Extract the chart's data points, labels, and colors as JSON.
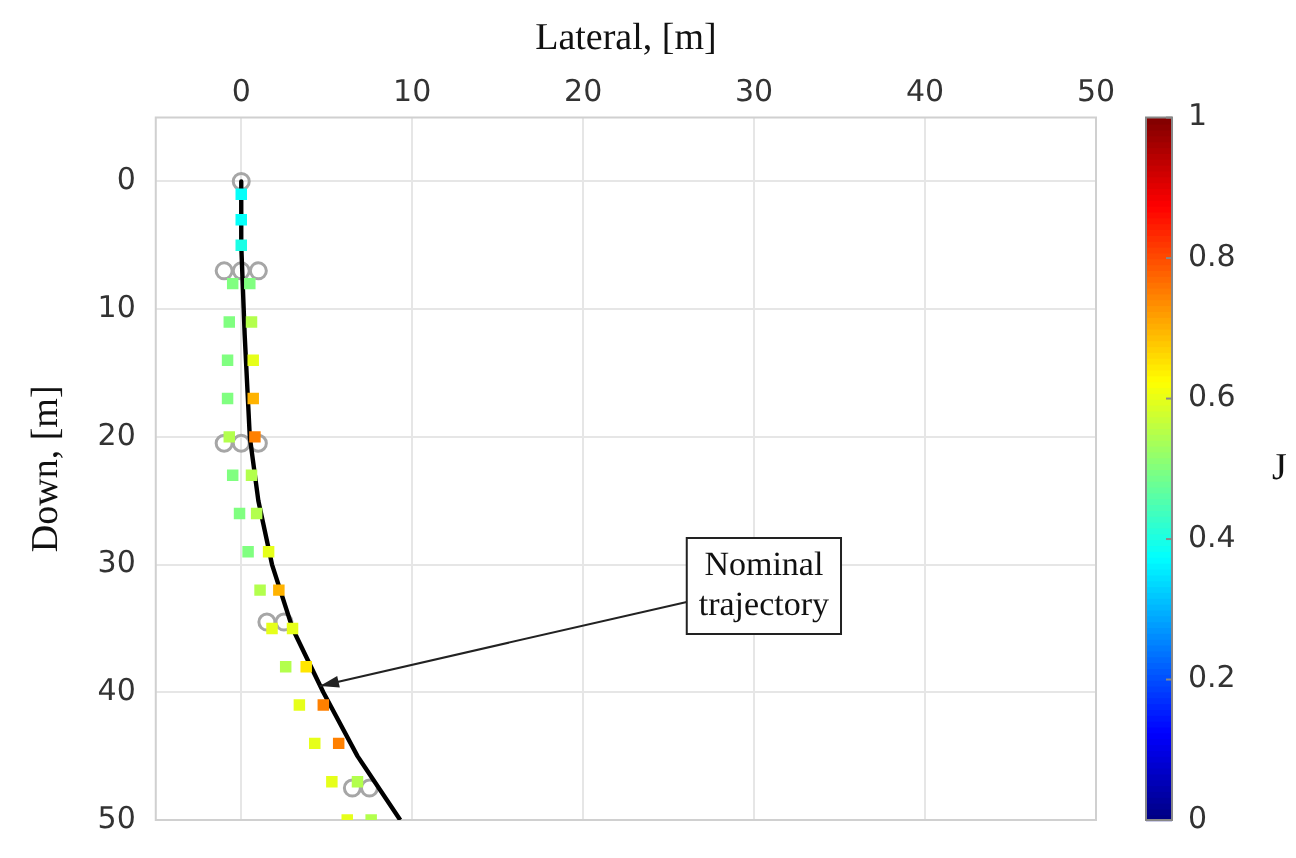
{
  "chart_data": {
    "type": "line",
    "xlabel": "Lateral, [m]",
    "ylabel": "Down, [m]",
    "clabel": "J",
    "xlim": [
      -5,
      50
    ],
    "xticks": [
      0,
      10,
      20,
      30,
      40,
      50
    ],
    "ylim": [
      50,
      -5
    ],
    "yticks": [
      0,
      10,
      20,
      30,
      40,
      50
    ],
    "clim": [
      0,
      1
    ],
    "cticks": [
      0,
      0.2,
      0.4,
      0.6,
      0.8,
      1
    ],
    "grid": true,
    "legend": false,
    "series": [
      {
        "type": "scatter",
        "marker": "square",
        "x": [
          0,
          0,
          0,
          -0.5,
          0.5,
          -0.7,
          0.6,
          -0.8,
          0.7,
          -0.8,
          0.7,
          -0.7,
          0.8,
          -0.5,
          0.6,
          -0.1,
          0.9,
          0.4,
          1.6,
          1.1,
          2.2,
          1.8,
          3.0,
          2.6,
          3.8,
          3.4,
          4.8,
          4.3,
          5.7,
          5.3,
          6.8,
          6.2,
          7.6
        ],
        "values": [
          1,
          3,
          5,
          8,
          8,
          11,
          11,
          14,
          14,
          17,
          17,
          20,
          20,
          23,
          23,
          26,
          26,
          29,
          29,
          32,
          32,
          35,
          35,
          38,
          38,
          41,
          41,
          44,
          44,
          47,
          47,
          50,
          50
        ],
        "colors": [
          "#05fffa",
          "#05fffa",
          "#1affe6",
          "#80ff80",
          "#80ff80",
          "#80ff80",
          "#b3ff4d",
          "#80ff80",
          "#e6ff1a",
          "#80ff80",
          "#ffb300",
          "#b3ff4d",
          "#ff8000",
          "#80ff80",
          "#b3ff4d",
          "#80ff80",
          "#b3ff4d",
          "#80ff80",
          "#e6ff1a",
          "#b3ff4d",
          "#ffb300",
          "#e6ff1a",
          "#e6ff1a",
          "#b3ff4d",
          "#ffe600",
          "#e6ff1a",
          "#ff8000",
          "#e6ff1a",
          "#ff8000",
          "#e6ff1a",
          "#b3ff4d",
          "#e6ff1a",
          "#b3ff4d"
        ]
      },
      {
        "marker": "none",
        "color": "#000000",
        "x": [
          0,
          0,
          0.2,
          0.5,
          1,
          1.8,
          3,
          4.8,
          6.8,
          9.3
        ],
        "values": [
          0,
          5,
          12,
          20,
          25,
          30,
          35,
          40,
          45,
          50
        ]
      },
      {
        "type": "scatter",
        "marker": "circle",
        "color": "#a6a6a6",
        "x": [
          0,
          -1,
          0,
          1,
          -1,
          0,
          1,
          1.5,
          2.5,
          6.5,
          7.5
        ],
        "values": [
          0,
          7,
          7,
          7,
          20.5,
          20.5,
          20.5,
          34.5,
          34.5,
          47.5,
          47.5
        ]
      }
    ],
    "annotations": [
      {
        "text": "Nominal trajectory",
        "x": 4.6,
        "y": 39.5
      }
    ]
  }
}
